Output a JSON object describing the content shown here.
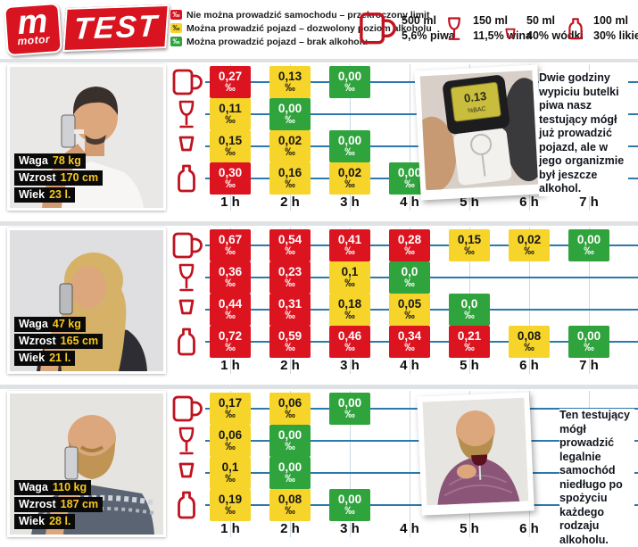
{
  "permille": "‰",
  "header": {
    "logo": {
      "m": "m",
      "motor": "motor",
      "test": "TEST"
    },
    "legend": [
      {
        "symbol": "‰",
        "color": "red",
        "label": "Nie można prowadzić samochodu – przekroczony limit"
      },
      {
        "symbol": "‰",
        "color": "yellow",
        "label": "Można prowadzić pojazd – dozwolony poziom alkoholu"
      },
      {
        "symbol": "‰",
        "color": "green",
        "label": "Można prowadzić pojazd – brak alkoholu"
      }
    ],
    "drinks": [
      {
        "icon": "beer-mug-icon",
        "volume": "500 ml",
        "desc": "5,6% piwa"
      },
      {
        "icon": "wine-glass-icon",
        "volume": "150 ml",
        "desc": "11,5% wina"
      },
      {
        "icon": "shot-glass-icon",
        "volume": "50 ml",
        "desc": "40% wódki"
      },
      {
        "icon": "liqueur-bottle-icon",
        "volume": "100 ml",
        "desc": "30% likieru"
      }
    ]
  },
  "colors": {
    "red": "#dc1420",
    "yellow": "#f6d42a",
    "green": "#2fa33c",
    "line_blue": "#2b79ad",
    "icon_red": "#c1121f"
  },
  "persons": [
    {
      "stats": [
        {
          "label": "Waga",
          "value": "78 kg"
        },
        {
          "label": "Wzrost",
          "value": "170 cm"
        },
        {
          "label": "Wiek",
          "value": "23 l."
        }
      ],
      "breathalyzer": {
        "value": "0.13",
        "unit": "%BAC"
      },
      "note": "Dwie godziny wypiciu butelki piwa nasz testujący mógł już prowadzić pojazd, ale w jego organizmie był jeszcze alkohol."
    },
    {
      "stats": [
        {
          "label": "Waga",
          "value": "47 kg"
        },
        {
          "label": "Wzrost",
          "value": "165 cm"
        },
        {
          "label": "Wiek",
          "value": "21 l."
        }
      ]
    },
    {
      "stats": [
        {
          "label": "Waga",
          "value": "110 kg"
        },
        {
          "label": "Wzrost",
          "value": "187 cm"
        },
        {
          "label": "Wiek",
          "value": "28 l."
        }
      ],
      "note": "Ten testujący mógł prowadzić legalnie samochód niedługo po spożyciu każdego rodzaju alkoholu."
    }
  ],
  "chart_data": [
    {
      "type": "heatmap",
      "x": [
        "1 h",
        "2 h",
        "3 h",
        "4 h",
        "5 h",
        "6 h",
        "7 h"
      ],
      "value_unit": "‰",
      "legend_position": "top",
      "series": [
        {
          "name": "piwo 500 ml 5,6%",
          "points": [
            [
              "0,27",
              "red"
            ],
            [
              "0,13",
              "yellow"
            ],
            [
              "0,00",
              "green"
            ]
          ]
        },
        {
          "name": "wino 150 ml 11,5%",
          "points": [
            [
              "0,11",
              "yellow"
            ],
            [
              "0,00",
              "green"
            ]
          ]
        },
        {
          "name": "wódka 50 ml 40%",
          "points": [
            [
              "0,15",
              "yellow"
            ],
            [
              "0,02",
              "yellow"
            ],
            [
              "0,00",
              "green"
            ]
          ]
        },
        {
          "name": "likier 100 ml 30%",
          "points": [
            [
              "0,30",
              "red"
            ],
            [
              "0,16",
              "yellow"
            ],
            [
              "0,02",
              "yellow"
            ],
            [
              "0,00",
              "green"
            ]
          ]
        }
      ]
    },
    {
      "type": "heatmap",
      "x": [
        "1 h",
        "2 h",
        "3 h",
        "4 h",
        "5 h",
        "6 h",
        "7 h"
      ],
      "value_unit": "‰",
      "series": [
        {
          "name": "piwo 500 ml 5,6%",
          "points": [
            [
              "0,67",
              "red"
            ],
            [
              "0,54",
              "red"
            ],
            [
              "0,41",
              "red"
            ],
            [
              "0,28",
              "red"
            ],
            [
              "0,15",
              "yellow"
            ],
            [
              "0,02",
              "yellow"
            ],
            [
              "0,00",
              "green"
            ]
          ]
        },
        {
          "name": "wino 150 ml 11,5%",
          "points": [
            [
              "0,36",
              "red"
            ],
            [
              "0,23",
              "red"
            ],
            [
              "0,1",
              "yellow"
            ],
            [
              "0,0",
              "green"
            ]
          ]
        },
        {
          "name": "wódka 50 ml 40%",
          "points": [
            [
              "0,44",
              "red"
            ],
            [
              "0,31",
              "red"
            ],
            [
              "0,18",
              "yellow"
            ],
            [
              "0,05",
              "yellow"
            ],
            [
              "0,0",
              "green"
            ]
          ]
        },
        {
          "name": "likier 100 ml 30%",
          "points": [
            [
              "0,72",
              "red"
            ],
            [
              "0,59",
              "red"
            ],
            [
              "0,46",
              "red"
            ],
            [
              "0,34",
              "red"
            ],
            [
              "0,21",
              "red"
            ],
            [
              "0,08",
              "yellow"
            ],
            [
              "0,00",
              "green"
            ]
          ]
        }
      ]
    },
    {
      "type": "heatmap",
      "x": [
        "1 h",
        "2 h",
        "3 h",
        "4 h",
        "5 h",
        "6 h",
        "7 h"
      ],
      "value_unit": "‰",
      "series": [
        {
          "name": "piwo 500 ml 5,6%",
          "points": [
            [
              "0,17",
              "yellow"
            ],
            [
              "0,06",
              "yellow"
            ],
            [
              "0,00",
              "green"
            ]
          ]
        },
        {
          "name": "wino 150 ml 11,5%",
          "points": [
            [
              "0,06",
              "yellow"
            ],
            [
              "0,00",
              "green"
            ]
          ]
        },
        {
          "name": "wódka 50 ml 40%",
          "points": [
            [
              "0,1",
              "yellow"
            ],
            [
              "0,00",
              "green"
            ]
          ]
        },
        {
          "name": "likier 100 ml 30%",
          "points": [
            [
              "0,19",
              "yellow"
            ],
            [
              "0,08",
              "yellow"
            ],
            [
              "0,00",
              "green"
            ]
          ]
        }
      ]
    }
  ]
}
